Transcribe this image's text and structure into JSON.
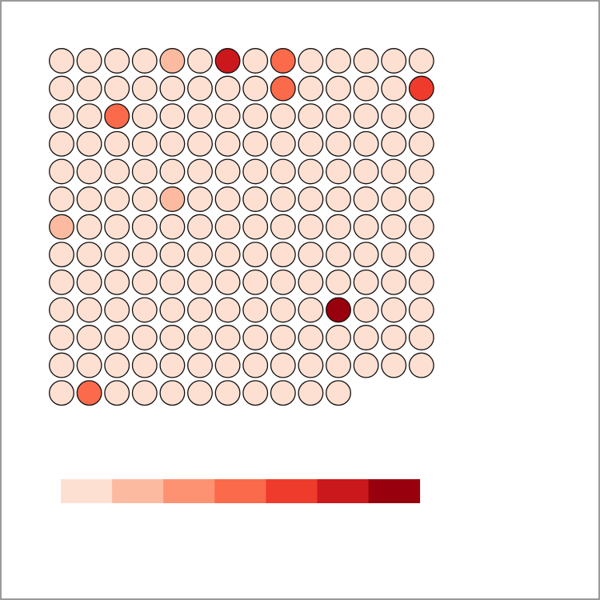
{
  "chart_data": {
    "type": "waffle",
    "columns": 14,
    "palette": [
      "#fee0d2",
      "#fcbba1",
      "#fc9272",
      "#fb6a4a",
      "#ef3b2c",
      "#cb181d",
      "#99000d"
    ],
    "cells": [
      0,
      0,
      0,
      0,
      1,
      0,
      5,
      0,
      3,
      0,
      0,
      0,
      0,
      0,
      0,
      0,
      0,
      0,
      0,
      0,
      0,
      0,
      3,
      0,
      0,
      0,
      0,
      4,
      0,
      0,
      3,
      0,
      0,
      0,
      0,
      0,
      0,
      0,
      0,
      0,
      0,
      0,
      0,
      0,
      0,
      0,
      0,
      0,
      0,
      0,
      0,
      0,
      0,
      0,
      0,
      0,
      0,
      0,
      0,
      0,
      0,
      0,
      0,
      0,
      0,
      0,
      0,
      0,
      0,
      0,
      0,
      0,
      0,
      0,
      1,
      0,
      0,
      0,
      0,
      0,
      0,
      0,
      0,
      0,
      1,
      0,
      0,
      0,
      0,
      0,
      0,
      0,
      0,
      0,
      0,
      0,
      0,
      0,
      0,
      0,
      0,
      0,
      0,
      0,
      0,
      0,
      0,
      0,
      0,
      0,
      0,
      0,
      0,
      0,
      0,
      0,
      0,
      0,
      0,
      0,
      0,
      0,
      0,
      0,
      0,
      0,
      0,
      0,
      0,
      0,
      0,
      0,
      0,
      0,
      0,
      0,
      6,
      0,
      0,
      0,
      0,
      0,
      0,
      0,
      0,
      0,
      0,
      0,
      0,
      0,
      0,
      0,
      0,
      0,
      0,
      0,
      0,
      0,
      0,
      0,
      0,
      0,
      0,
      0,
      0,
      0,
      0,
      0,
      0,
      3,
      0,
      0,
      0,
      0,
      0,
      0,
      0,
      0,
      0
    ],
    "legend": {
      "type": "color-scale",
      "levels": 7,
      "labels": []
    }
  }
}
